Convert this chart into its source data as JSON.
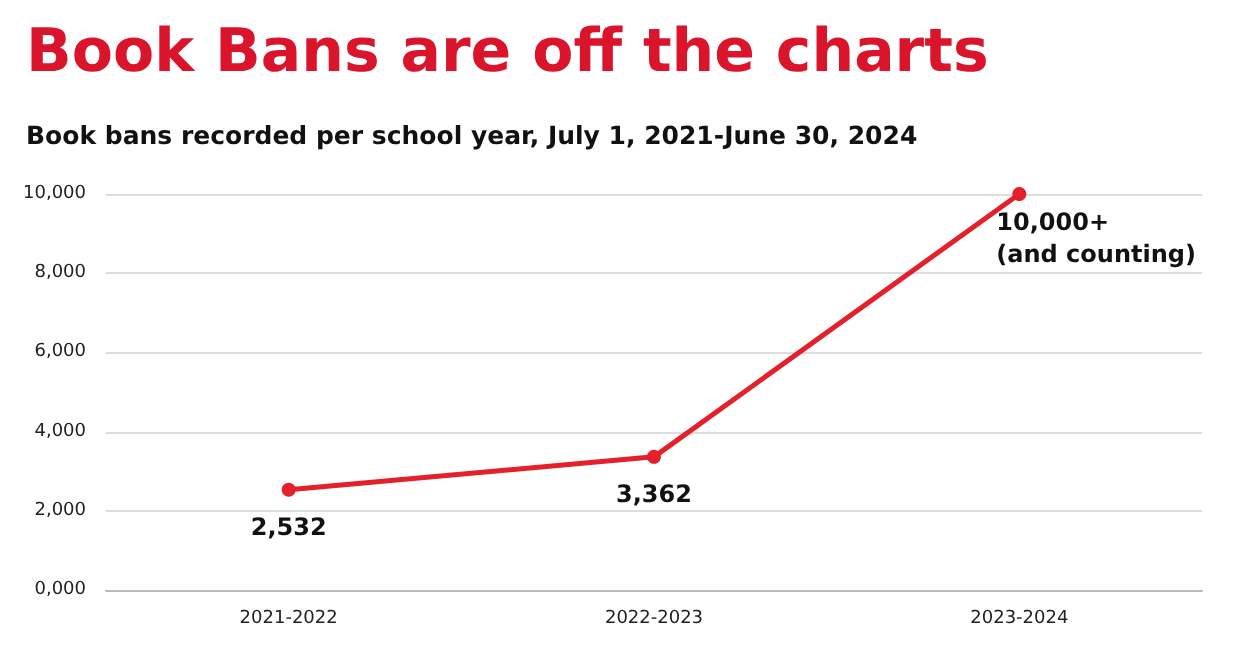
{
  "chart_data": {
    "type": "line",
    "title": "Book Bans are off the charts",
    "subtitle": "Book bans recorded per school year, July 1, 2021-June 30, 2024",
    "categories": [
      "2021-2022",
      "2022-2023",
      "2023-2024"
    ],
    "series": [
      {
        "color": "#e3202b",
        "values": [
          2532,
          3362,
          10000
        ],
        "value_labels": [
          "2,532",
          "3,362",
          "10,000+\n(and counting)"
        ]
      }
    ],
    "ylim": [
      0,
      10000
    ],
    "yticks": [
      {
        "value": 0,
        "label": "0,000"
      },
      {
        "value": 2000,
        "label": "2,000"
      },
      {
        "value": 4000,
        "label": "4,000"
      },
      {
        "value": 6000,
        "label": "6,000"
      },
      {
        "value": 8000,
        "label": "8,000"
      },
      {
        "value": 10000,
        "label": "10,000"
      }
    ],
    "grid": "y",
    "marker": "circle",
    "line_style": "solid"
  }
}
